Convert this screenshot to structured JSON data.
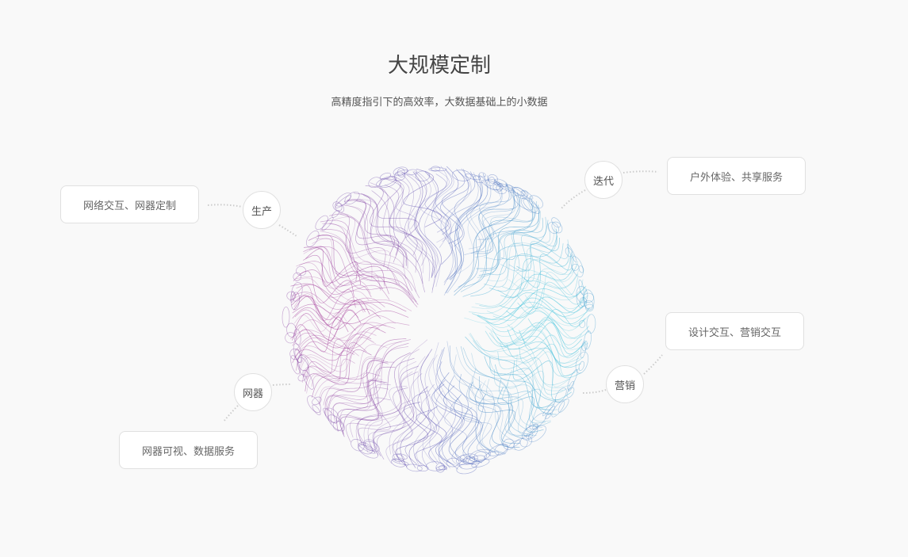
{
  "header": {
    "title": "大规模定制",
    "subtitle": "高精度指引下的高效率，大数据基础上的小数据"
  },
  "nodes": [
    {
      "label": "生产",
      "desc": "网络交互、网器定制"
    },
    {
      "label": "迭代",
      "desc": "户外体验、共享服务"
    },
    {
      "label": "营销",
      "desc": "设计交互、营销交互"
    },
    {
      "label": "网器",
      "desc": "网器可视、数据服务"
    }
  ],
  "colors": {
    "left": "#b0409a",
    "right": "#40d0e0",
    "rim": "#5a5ab8",
    "connector": "#cccccc"
  }
}
